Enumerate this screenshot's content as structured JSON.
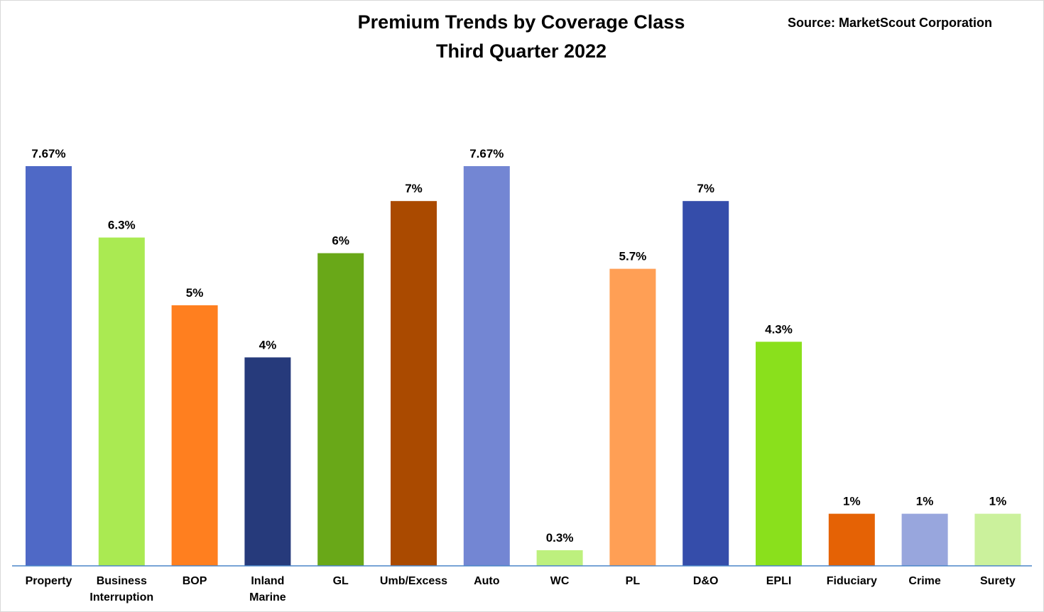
{
  "chart_data": {
    "type": "bar",
    "title": "Premium Trends by Coverage Class",
    "subtitle": "Third Quarter 2022",
    "source": "Source: MarketScout  Corporation",
    "categories": [
      "Property",
      "Business Interruption",
      "BOP",
      "Inland Marine",
      "GL",
      "Umb/Excess",
      "Auto",
      "WC",
      "PL",
      "D&O",
      "EPLI",
      "Fiduciary",
      "Crime",
      "Surety"
    ],
    "category_lines": [
      [
        "Property"
      ],
      [
        "Business",
        "Interruption"
      ],
      [
        "BOP"
      ],
      [
        "Inland",
        "Marine"
      ],
      [
        "GL"
      ],
      [
        "Umb/Excess"
      ],
      [
        "Auto"
      ],
      [
        "WC"
      ],
      [
        "PL"
      ],
      [
        "D&O"
      ],
      [
        "EPLI"
      ],
      [
        "Fiduciary"
      ],
      [
        "Crime"
      ],
      [
        "Surety"
      ]
    ],
    "values": [
      7.67,
      6.3,
      5,
      4,
      6,
      7,
      7.67,
      0.3,
      5.7,
      7,
      4.3,
      1,
      1,
      1
    ],
    "value_labels": [
      "7.67%",
      "6.3%",
      "5%",
      "4%",
      "6%",
      "7%",
      "7.67%",
      "0.3%",
      "5.7%",
      "7%",
      "4.3%",
      "1%",
      "1%",
      "1%"
    ],
    "colors": [
      "#4F69C6",
      "#AAEA52",
      "#FF7F1F",
      "#263A7B",
      "#69A818",
      "#AA4A00",
      "#7386D3",
      "#BDF07E",
      "#FF9F55",
      "#354DAA",
      "#8AE01C",
      "#E56205",
      "#98A6DD",
      "#CBF19C"
    ],
    "ylim": [
      0,
      7.67
    ],
    "axis_color": "#4A86C8",
    "grid": false,
    "legend": "none"
  }
}
